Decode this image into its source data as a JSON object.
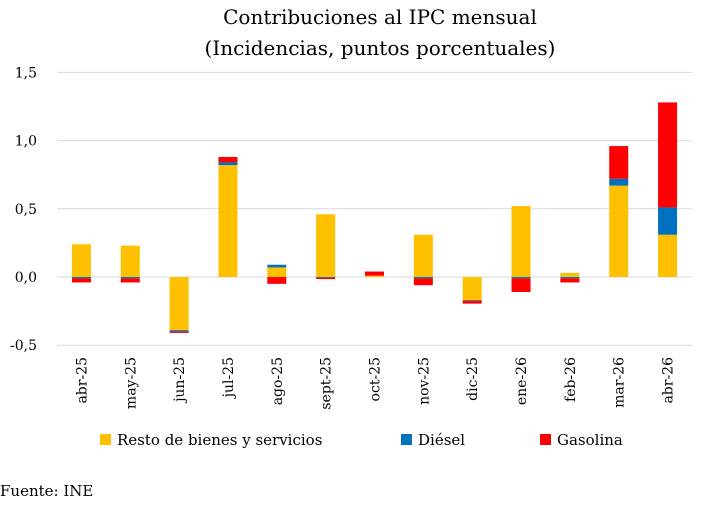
{
  "chart_data": {
    "type": "bar",
    "stacked": true,
    "title": "Contribuciones al IPC mensual",
    "subtitle": "(Incidencias, puntos porcentuales)",
    "categories": [
      "abr-25",
      "may-25",
      "jun-25",
      "jul-25",
      "ago-25",
      "sept-25",
      "oct-25",
      "nov-25",
      "dic-25",
      "ene-26",
      "feb-26",
      "mar-26",
      "abr-26"
    ],
    "series": [
      {
        "name": "Resto de bienes y servicios",
        "color": "#FFC000",
        "values": [
          0.24,
          0.23,
          -0.39,
          0.82,
          0.07,
          0.46,
          0.01,
          0.31,
          -0.17,
          0.52,
          0.03,
          0.67,
          0.31
        ]
      },
      {
        "name": "Diésel",
        "color": "#0070C0",
        "values": [
          -0.01,
          -0.01,
          -0.01,
          0.02,
          0.02,
          -0.005,
          0.0,
          -0.01,
          -0.005,
          -0.01,
          -0.01,
          0.05,
          0.2
        ]
      },
      {
        "name": "Gasolina",
        "color": "#FF0000",
        "values": [
          -0.03,
          -0.03,
          -0.01,
          0.04,
          -0.05,
          -0.01,
          0.03,
          -0.05,
          -0.02,
          -0.1,
          -0.03,
          0.24,
          0.77
        ]
      }
    ],
    "ylim": [
      -0.5,
      1.5
    ],
    "yticks": [
      "1,5",
      "1,0",
      "0,5",
      "0,0",
      "-0,5"
    ],
    "ytick_values": [
      1.5,
      1.0,
      0.5,
      0.0,
      -0.5
    ],
    "grid": true,
    "legend_position": "bottom",
    "source": "Fuente: INE"
  }
}
